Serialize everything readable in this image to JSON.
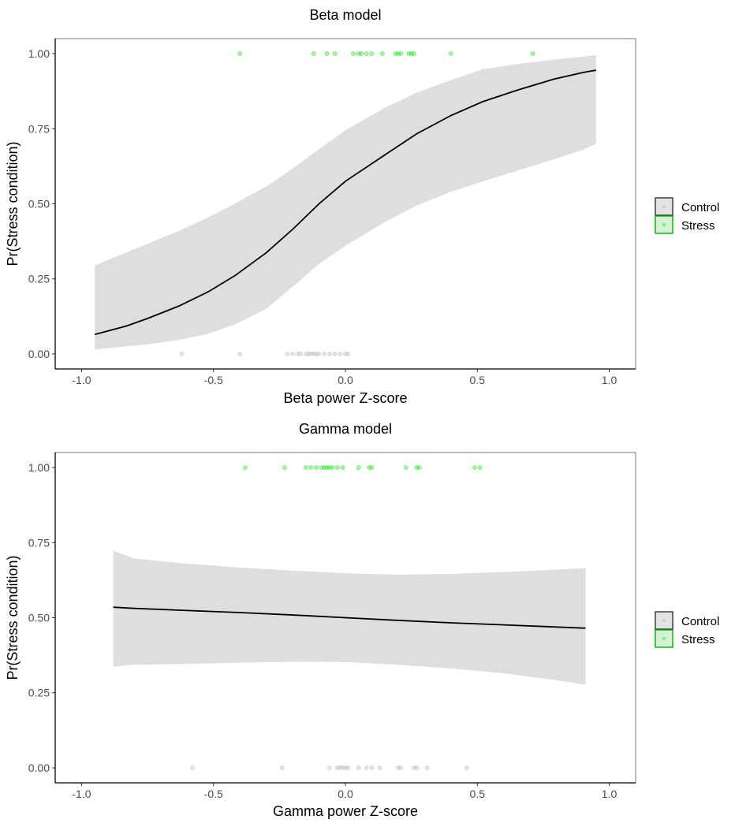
{
  "chart_data": [
    {
      "type": "line",
      "title": "Beta model",
      "xlabel": "Beta power Z-score",
      "ylabel": "Pr(Stress condition)",
      "xlim": [
        -1.1,
        1.1
      ],
      "ylim": [
        -0.05,
        1.05
      ],
      "x_ticks": [
        -1.0,
        -0.5,
        0.0,
        0.5,
        1.0
      ],
      "x_tick_labels": [
        "-1.0",
        "-0.5",
        "0.0",
        "0.5",
        "1.0"
      ],
      "y_ticks": [
        0.0,
        0.25,
        0.5,
        0.75,
        1.0
      ],
      "y_tick_labels": [
        "0.00",
        "0.25",
        "0.50",
        "0.75",
        "1.00"
      ],
      "grid": false,
      "legend_position": "right",
      "legend": [
        {
          "label": "Control",
          "color": "#bdbdbd"
        },
        {
          "label": "Stress",
          "color": "#00cc00"
        }
      ],
      "fit": {
        "name": "fit",
        "color": "#000000",
        "x": [
          -0.95,
          -0.83,
          -0.75,
          -0.63,
          -0.52,
          -0.42,
          -0.3,
          -0.2,
          -0.1,
          0.0,
          0.15,
          0.27,
          0.4,
          0.52,
          0.65,
          0.79,
          0.9,
          0.95
        ],
        "y": [
          0.065,
          0.093,
          0.118,
          0.16,
          0.207,
          0.26,
          0.337,
          0.415,
          0.5,
          0.575,
          0.663,
          0.733,
          0.794,
          0.84,
          0.878,
          0.915,
          0.937,
          0.945
        ],
        "lower": [
          0.015,
          0.025,
          0.032,
          0.047,
          0.067,
          0.098,
          0.15,
          0.224,
          0.3,
          0.36,
          0.44,
          0.494,
          0.54,
          0.574,
          0.61,
          0.648,
          0.68,
          0.7
        ],
        "upper": [
          0.295,
          0.338,
          0.367,
          0.41,
          0.455,
          0.5,
          0.558,
          0.617,
          0.682,
          0.745,
          0.82,
          0.87,
          0.912,
          0.948,
          0.965,
          0.98,
          0.99,
          0.995
        ]
      },
      "points": [
        {
          "group": "Stress",
          "y": 1.0,
          "x": [
            -0.4,
            -0.12,
            -0.07,
            -0.04,
            0.03,
            0.05,
            0.06,
            0.08,
            0.1,
            0.14,
            0.19,
            0.2,
            0.21,
            0.24,
            0.25,
            0.26,
            0.4,
            0.71
          ]
        },
        {
          "group": "Control",
          "y": 0.0,
          "x": [
            -0.62,
            -0.4,
            -0.22,
            -0.2,
            -0.18,
            -0.17,
            -0.15,
            -0.14,
            -0.13,
            -0.12,
            -0.11,
            -0.1,
            -0.08,
            -0.06,
            -0.04,
            -0.02,
            0.0,
            0.01
          ]
        }
      ]
    },
    {
      "type": "line",
      "title": "Gamma model",
      "xlabel": "Gamma power Z-score",
      "ylabel": "Pr(Stress condition)",
      "xlim": [
        -1.1,
        1.1
      ],
      "ylim": [
        -0.05,
        1.05
      ],
      "x_ticks": [
        -1.0,
        -0.5,
        0.0,
        0.5,
        1.0
      ],
      "x_tick_labels": [
        "-1.0",
        "-0.5",
        "0.0",
        "0.5",
        "1.0"
      ],
      "y_ticks": [
        0.0,
        0.25,
        0.5,
        0.75,
        1.0
      ],
      "y_tick_labels": [
        "0.00",
        "0.25",
        "0.50",
        "0.75",
        "1.00"
      ],
      "grid": false,
      "legend_position": "right",
      "legend": [
        {
          "label": "Control",
          "color": "#bdbdbd"
        },
        {
          "label": "Stress",
          "color": "#00cc00"
        }
      ],
      "fit": {
        "name": "fit",
        "color": "#000000",
        "x": [
          -0.88,
          -0.8,
          -0.6,
          -0.4,
          -0.2,
          0.0,
          0.2,
          0.4,
          0.6,
          0.8,
          0.91
        ],
        "y": [
          0.535,
          0.531,
          0.524,
          0.517,
          0.509,
          0.5,
          0.491,
          0.483,
          0.476,
          0.469,
          0.465
        ],
        "lower": [
          0.337,
          0.343,
          0.346,
          0.35,
          0.353,
          0.352,
          0.343,
          0.331,
          0.315,
          0.292,
          0.277
        ],
        "upper": [
          0.723,
          0.697,
          0.68,
          0.667,
          0.657,
          0.648,
          0.643,
          0.646,
          0.652,
          0.66,
          0.665
        ]
      },
      "points": [
        {
          "group": "Stress",
          "y": 1.0,
          "x": [
            -0.38,
            -0.23,
            -0.15,
            -0.13,
            -0.11,
            -0.09,
            -0.08,
            -0.07,
            -0.06,
            -0.05,
            -0.03,
            -0.01,
            0.05,
            0.09,
            0.1,
            0.23,
            0.27,
            0.28,
            0.49,
            0.51
          ]
        },
        {
          "group": "Control",
          "y": 0.0,
          "x": [
            -0.58,
            -0.24,
            -0.06,
            -0.03,
            -0.02,
            -0.01,
            0.0,
            0.01,
            0.05,
            0.08,
            0.1,
            0.13,
            0.2,
            0.21,
            0.26,
            0.27,
            0.31,
            0.46
          ]
        }
      ]
    }
  ]
}
